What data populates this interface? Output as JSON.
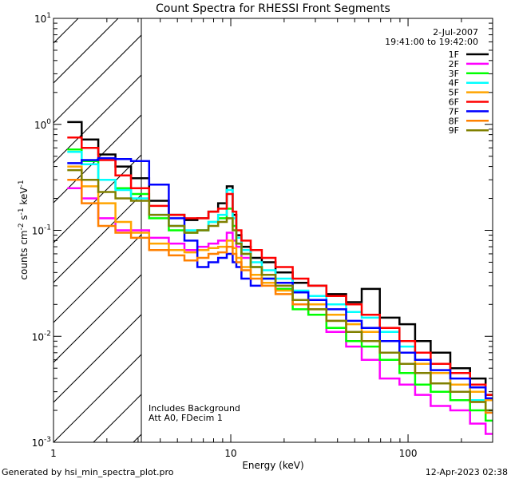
{
  "chart_data": {
    "type": "line",
    "title": "Count Spectra for RHESSI Front Segments",
    "xlabel": "Energy (keV)",
    "ylabel_base": "counts cm",
    "ylabel_exp1": "-2",
    "ylabel_mid1": " s",
    "ylabel_exp2": "-1",
    "ylabel_mid2": " keV",
    "ylabel_exp3": "-1",
    "x_scale": "log",
    "y_scale": "log",
    "xlim": [
      1,
      300
    ],
    "ylim": [
      0.001,
      10
    ],
    "x_ticks": [
      {
        "value": 1,
        "label": "1"
      },
      {
        "value": 10,
        "label": "10"
      },
      {
        "value": 100,
        "label": "100"
      }
    ],
    "y_ticks": [
      {
        "value": 0.001,
        "base": "10",
        "exp": "-3"
      },
      {
        "value": 0.01,
        "base": "10",
        "exp": "-2"
      },
      {
        "value": 0.1,
        "base": "10",
        "exp": "-1"
      },
      {
        "value": 1,
        "base": "10",
        "exp": "0"
      },
      {
        "value": 10,
        "base": "10",
        "exp": "1"
      }
    ],
    "hatched_region": {
      "x_from": 1,
      "x_to": 3
    },
    "legend": {
      "position": "top-right",
      "date": "2-Jul-2007",
      "time_range": "19:41:00 to 19:42:00"
    },
    "annotation_lines": [
      "Includes Background",
      "Att A0, FDecim 1"
    ],
    "energies": [
      1.3,
      1.6,
      2.0,
      2.5,
      3.0,
      4.0,
      5.0,
      6.0,
      7.0,
      8.0,
      9.0,
      10.0,
      10.5,
      11.0,
      12.0,
      14.0,
      16.0,
      20.0,
      25.0,
      30.0,
      40.0,
      50.0,
      60.0,
      80.0,
      100.0,
      120.0,
      150.0,
      200.0,
      250.0,
      300.0
    ],
    "series": [
      {
        "name": "1F",
        "color": "#000000",
        "values": [
          1.05,
          0.72,
          0.52,
          0.4,
          0.31,
          0.19,
          0.14,
          0.125,
          0.13,
          0.15,
          0.18,
          0.26,
          0.14,
          0.09,
          0.07,
          0.055,
          0.05,
          0.04,
          0.032,
          0.03,
          0.025,
          0.021,
          0.028,
          0.015,
          0.013,
          0.009,
          0.007,
          0.005,
          0.004,
          0.0028
        ]
      },
      {
        "name": "2F",
        "color": "#ff00ff",
        "values": [
          0.25,
          0.2,
          0.13,
          0.1,
          0.1,
          0.085,
          0.075,
          0.065,
          0.07,
          0.075,
          0.08,
          0.095,
          0.08,
          0.07,
          0.055,
          0.045,
          0.038,
          0.028,
          0.02,
          0.016,
          0.011,
          0.008,
          0.006,
          0.004,
          0.0035,
          0.0028,
          0.0022,
          0.002,
          0.0015,
          0.0012
        ]
      },
      {
        "name": "3F",
        "color": "#00ff00",
        "values": [
          0.58,
          0.45,
          0.3,
          0.25,
          0.22,
          0.13,
          0.1,
          0.095,
          0.1,
          0.12,
          0.13,
          0.16,
          0.11,
          0.075,
          0.06,
          0.045,
          0.035,
          0.028,
          0.018,
          0.016,
          0.012,
          0.009,
          0.008,
          0.006,
          0.0045,
          0.0035,
          0.003,
          0.0025,
          0.002,
          0.0016
        ]
      },
      {
        "name": "4F",
        "color": "#00ffff",
        "values": [
          0.55,
          0.42,
          0.3,
          0.24,
          0.2,
          0.14,
          0.11,
          0.1,
          0.1,
          0.12,
          0.14,
          0.24,
          0.13,
          0.085,
          0.065,
          0.05,
          0.042,
          0.035,
          0.027,
          0.024,
          0.02,
          0.017,
          0.015,
          0.011,
          0.008,
          0.006,
          0.0045,
          0.0035,
          0.0025,
          0.002
        ]
      },
      {
        "name": "5F",
        "color": "#ffa500",
        "values": [
          0.4,
          0.26,
          0.18,
          0.12,
          0.095,
          0.075,
          0.065,
          0.062,
          0.065,
          0.068,
          0.07,
          0.08,
          0.068,
          0.055,
          0.045,
          0.038,
          0.032,
          0.027,
          0.022,
          0.02,
          0.016,
          0.013,
          0.011,
          0.009,
          0.007,
          0.0055,
          0.0045,
          0.0035,
          0.003,
          0.0025
        ]
      },
      {
        "name": "6F",
        "color": "#ff0000",
        "values": [
          0.75,
          0.6,
          0.46,
          0.33,
          0.25,
          0.17,
          0.14,
          0.13,
          0.13,
          0.15,
          0.16,
          0.22,
          0.15,
          0.1,
          0.08,
          0.065,
          0.055,
          0.045,
          0.035,
          0.03,
          0.024,
          0.02,
          0.016,
          0.012,
          0.009,
          0.007,
          0.0055,
          0.0045,
          0.0035,
          0.0028
        ]
      },
      {
        "name": "7F",
        "color": "#0000ff",
        "values": [
          0.43,
          0.46,
          0.48,
          0.47,
          0.45,
          0.27,
          0.13,
          0.08,
          0.045,
          0.05,
          0.055,
          0.06,
          0.05,
          0.045,
          0.035,
          0.03,
          0.035,
          0.032,
          0.026,
          0.022,
          0.018,
          0.014,
          0.012,
          0.009,
          0.007,
          0.006,
          0.0048,
          0.004,
          0.0033,
          0.0026
        ]
      },
      {
        "name": "8F",
        "color": "#ff8000",
        "values": [
          0.3,
          0.18,
          0.11,
          0.095,
          0.085,
          0.065,
          0.058,
          0.052,
          0.055,
          0.06,
          0.062,
          0.07,
          0.06,
          0.05,
          0.042,
          0.035,
          0.03,
          0.025,
          0.02,
          0.018,
          0.014,
          0.011,
          0.009,
          0.007,
          0.0055,
          0.0045,
          0.0036,
          0.003,
          0.0024,
          0.0019
        ]
      },
      {
        "name": "9F",
        "color": "#808000",
        "values": [
          0.37,
          0.3,
          0.23,
          0.2,
          0.19,
          0.14,
          0.11,
          0.095,
          0.1,
          0.11,
          0.12,
          0.13,
          0.1,
          0.075,
          0.06,
          0.045,
          0.038,
          0.03,
          0.022,
          0.018,
          0.014,
          0.011,
          0.009,
          0.007,
          0.0055,
          0.0045,
          0.0036,
          0.003,
          0.0024,
          0.002
        ]
      }
    ]
  },
  "footer": {
    "generator": "Generated by hsi_min_spectra_plot.pro",
    "timestamp": "12-Apr-2023 02:38"
  }
}
